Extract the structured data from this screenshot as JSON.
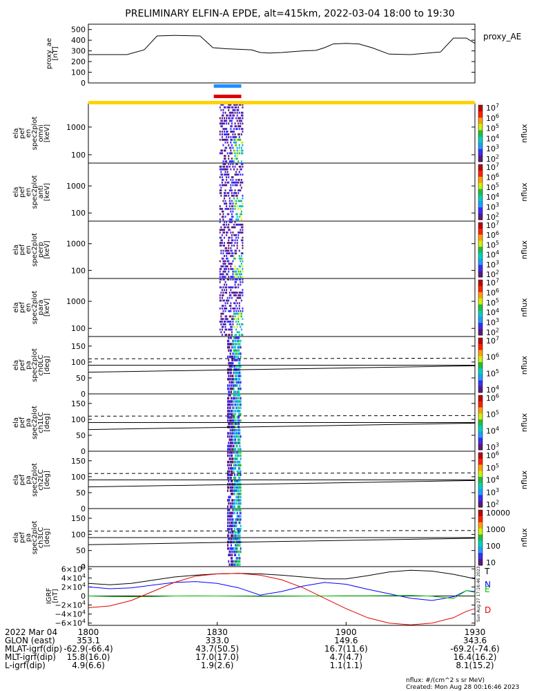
{
  "title": "PRELIMINARY ELFIN-A EPDE, alt=415km, 2022-03-04 18:00 to 19:30",
  "colors": {
    "flux_palette": [
      "#5a1a7a",
      "#3a2cff",
      "#1aa0ff",
      "#00d0c0",
      "#20c040",
      "#d0f000",
      "#ffa000",
      "#ff2000",
      "#c00000",
      "#ffffff"
    ],
    "ae_line": "#000000",
    "zone_bar": "#ffd200",
    "science_bar_blue": "#1e90ff",
    "science_bar_red": "#e00000",
    "pitch_dashed": "#000000",
    "igrf_T": "#000000",
    "igrf_N": "#0000ff",
    "igrf_E": "#00c000",
    "igrf_D": "#e00000"
  },
  "chart_data": [
    {
      "type": "line",
      "panel": "proxy_ae",
      "ylabel_lines": [
        "proxy_ae",
        "[nT]"
      ],
      "legend": "proxy_AE",
      "ylim": [
        0,
        550
      ],
      "yticks": [
        "500",
        "400",
        "300",
        "200",
        "100",
        "0"
      ],
      "x_minutes": [
        0,
        6,
        9,
        13,
        16,
        20,
        26,
        29,
        32,
        38,
        40,
        42,
        45,
        50,
        53,
        55,
        57,
        60,
        63,
        66,
        70,
        75,
        82,
        85,
        88,
        90
      ],
      "values": [
        265,
        265,
        265,
        310,
        440,
        445,
        440,
        330,
        320,
        310,
        285,
        280,
        285,
        300,
        305,
        330,
        365,
        370,
        365,
        330,
        270,
        265,
        290,
        420,
        420,
        370
      ]
    },
    {
      "type": "heatmap",
      "panel": "omni",
      "ylabel_lines": [
        "ela",
        "pef",
        "en",
        "spec2plot",
        "omni",
        "[keV]"
      ],
      "yscale": "log",
      "ylim": [
        50,
        7000
      ],
      "yticks": [
        "1000",
        "100"
      ],
      "cbar_label": "nflux",
      "cbar_ticks": [
        "10^7",
        "10^6",
        "10^5",
        "10^4",
        "10^3",
        "10^2"
      ]
    },
    {
      "type": "heatmap",
      "panel": "anti",
      "ylabel_lines": [
        "ela",
        "pef",
        "en",
        "spec2plot",
        "anti",
        "[keV]"
      ],
      "yscale": "log",
      "ylim": [
        50,
        7000
      ],
      "yticks": [
        "1000",
        "100"
      ],
      "cbar_label": "nflux",
      "cbar_ticks": [
        "10^7",
        "10^6",
        "10^5",
        "10^4",
        "10^3",
        "10^2"
      ]
    },
    {
      "type": "heatmap",
      "panel": "perp",
      "ylabel_lines": [
        "ela",
        "pef",
        "en",
        "spec2plot",
        "perp",
        "[keV]"
      ],
      "yscale": "log",
      "ylim": [
        50,
        7000
      ],
      "yticks": [
        "1000",
        "100"
      ],
      "cbar_label": "nflux",
      "cbar_ticks": [
        "10^7",
        "10^6",
        "10^5",
        "10^4",
        "10^3",
        "10^2"
      ]
    },
    {
      "type": "heatmap",
      "panel": "para",
      "ylabel_lines": [
        "ela",
        "pef",
        "en",
        "spec2plot",
        "para",
        "[keV]"
      ],
      "yscale": "log",
      "ylim": [
        50,
        7000
      ],
      "yticks": [
        "1000",
        "100"
      ],
      "cbar_label": "nflux",
      "cbar_ticks": [
        "10^7",
        "10^6",
        "10^5",
        "10^4",
        "10^3",
        "10^2"
      ]
    },
    {
      "type": "heatmap",
      "panel": "ch0LC",
      "ylabel_lines": [
        "ela",
        "pef",
        "pa",
        "spec2plot",
        "ch0LC",
        "[deg]"
      ],
      "ylim": [
        0,
        180
      ],
      "yticks": [
        "150",
        "100",
        "50",
        "0"
      ],
      "lc_dashed": [
        110,
        112
      ],
      "lc_solid": [
        68,
        88
      ],
      "cbar_label": "nflux",
      "cbar_ticks": [
        "10^7",
        "10^6",
        "10^5",
        "10^4"
      ]
    },
    {
      "type": "heatmap",
      "panel": "ch1LC",
      "ylabel_lines": [
        "ela",
        "pef",
        "pa",
        "spec2plot",
        "ch1LC",
        "[deg]"
      ],
      "ylim": [
        0,
        180
      ],
      "yticks": [
        "150",
        "100",
        "50",
        "0"
      ],
      "lc_dashed": [
        110,
        112
      ],
      "lc_solid": [
        68,
        88
      ],
      "cbar_label": "nflux",
      "cbar_ticks": [
        "10^6",
        "10^5",
        "10^4",
        "10^3"
      ]
    },
    {
      "type": "heatmap",
      "panel": "ch2LC",
      "ylabel_lines": [
        "ela",
        "pef",
        "pa",
        "spec2plot",
        "ch2LC",
        "[deg]"
      ],
      "ylim": [
        0,
        180
      ],
      "yticks": [
        "150",
        "100",
        "50",
        "0"
      ],
      "lc_dashed": [
        110,
        112
      ],
      "lc_solid": [
        68,
        88
      ],
      "cbar_label": "nflux",
      "cbar_ticks": [
        "10^6",
        "10^5",
        "10^4",
        "10^3",
        "10^2"
      ]
    },
    {
      "type": "heatmap",
      "panel": "ch3LC",
      "ylabel_lines": [
        "ela",
        "pef",
        "pa",
        "spec2plot",
        "ch3LC",
        "[deg]"
      ],
      "ylim": [
        0,
        180
      ],
      "yticks": [
        "150",
        "100",
        "50",
        "0"
      ],
      "lc_dashed": [
        110,
        112
      ],
      "lc_solid": [
        68,
        88
      ],
      "cbar_label": "nflux",
      "cbar_ticks": [
        "10000",
        "1000",
        "100",
        "10"
      ]
    },
    {
      "type": "line",
      "panel": "igrf",
      "ylabel_lines": [
        "IGRF",
        "[nT]"
      ],
      "ylim": [
        -65000,
        65000
      ],
      "yticks": [
        "6×10^4",
        "4×10^4",
        "2×10^4",
        "0",
        "−2×10^4",
        "−4×10^4",
        "−6×10^4"
      ],
      "x_minutes": [
        0,
        5,
        10,
        15,
        20,
        25,
        30,
        35,
        40,
        45,
        50,
        55,
        60,
        65,
        70,
        75,
        80,
        85,
        88,
        90
      ],
      "series": [
        {
          "name": "T",
          "values": [
            28000,
            25000,
            28000,
            35000,
            42000,
            46000,
            49000,
            50000,
            49000,
            46000,
            42000,
            38000,
            38000,
            45000,
            53000,
            57000,
            55000,
            48000,
            42000,
            38000
          ]
        },
        {
          "name": "N",
          "values": [
            20000,
            16000,
            18000,
            24000,
            30000,
            32000,
            28000,
            18000,
            2000,
            10000,
            22000,
            30000,
            26000,
            15000,
            5000,
            -5000,
            -10000,
            -2000,
            12000,
            10000
          ]
        },
        {
          "name": "E",
          "values": [
            0,
            -1000,
            -1500,
            -1000,
            0,
            200,
            0,
            -500,
            -800,
            -600,
            -200,
            0,
            300,
            500,
            800,
            1000,
            -500,
            -6000,
            12000,
            8000
          ]
        },
        {
          "name": "D",
          "values": [
            -26000,
            -22000,
            -10000,
            10000,
            30000,
            44000,
            49000,
            50000,
            46000,
            36000,
            18000,
            -5000,
            -28000,
            -48000,
            -60000,
            -64000,
            -60000,
            -48000,
            -34000,
            -28000
          ]
        }
      ]
    }
  ],
  "x_axis": {
    "ticks": [
      {
        "minute": 0,
        "time": "1800",
        "glon": "353.1",
        "mlat": "-62.9(-66.4)",
        "mlt": "15.8(16.0)",
        "l": "4.9(6.6)"
      },
      {
        "minute": 30,
        "time": "1830",
        "glon": "333.0",
        "mlat": "43.7(50.5)",
        "mlt": "17.0(17.0)",
        "l": "1.9(2.6)"
      },
      {
        "minute": 60,
        "time": "1900",
        "glon": "149.6",
        "mlat": "16.7(11.6)",
        "mlt": "4.7(4.7)",
        "l": "1.1(1.1)"
      },
      {
        "minute": 90,
        "time": "1930",
        "glon": "343.6",
        "mlat": "-69.2(-74.6)",
        "mlt": "16.4(16.2)",
        "l": "8.1(15.2)"
      }
    ],
    "row_labels": {
      "date": "2022 Mar 04",
      "glon": "GLON (east)",
      "mlat": "MLAT-igrf(dip)",
      "mlt": "MLT-igrf(dip)",
      "l": "L-igrf(dip)"
    }
  },
  "footer": {
    "units": "nflux: #/(cm^2 s sr MeV)",
    "created": "Created: Mon Aug 28 00:16:46 2023",
    "side_stamp": "Sun Aug 27 17:16:46 2023"
  }
}
